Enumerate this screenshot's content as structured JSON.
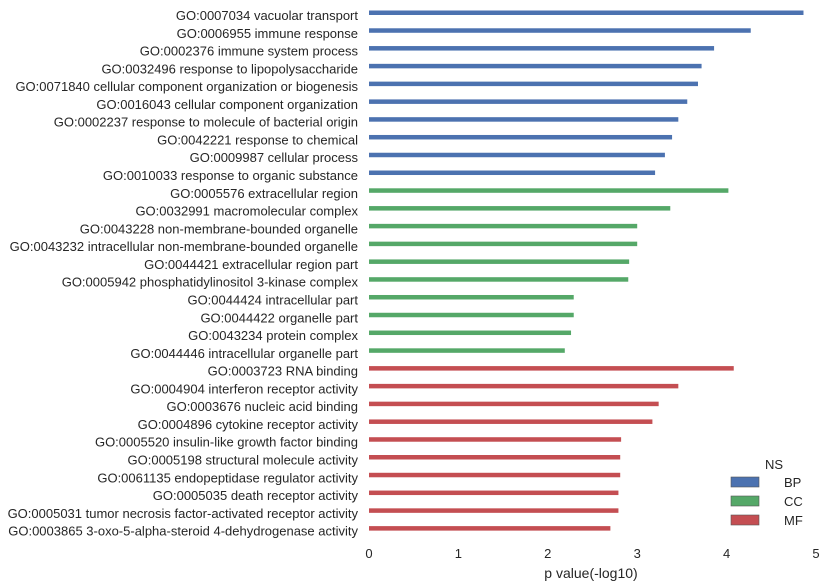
{
  "chart_data": {
    "type": "bar",
    "orientation": "horizontal",
    "xlabel": "p value(-log10)",
    "xlim": [
      0,
      5
    ],
    "xticks": [
      "0",
      "1",
      "2",
      "3",
      "4",
      "5"
    ],
    "grid": false,
    "legend": {
      "title": "NS",
      "placement": "bottom-right",
      "entries": [
        {
          "name": "BP",
          "color": "#4c72b0"
        },
        {
          "name": "CC",
          "color": "#55a868"
        },
        {
          "name": "MF",
          "color": "#c44e52"
        }
      ]
    },
    "categories": [
      {
        "label": "GO:0007034 vacuolar transport",
        "value": 4.86,
        "group": "BP"
      },
      {
        "label": "GO:0006955 immune response",
        "value": 4.27,
        "group": "BP"
      },
      {
        "label": "GO:0002376 immune system process",
        "value": 3.86,
        "group": "BP"
      },
      {
        "label": "GO:0032496 response to lipopolysaccharide",
        "value": 3.72,
        "group": "BP"
      },
      {
        "label": "GO:0071840 cellular component organization or biogenesis",
        "value": 3.68,
        "group": "BP"
      },
      {
        "label": "GO:0016043 cellular component organization",
        "value": 3.56,
        "group": "BP"
      },
      {
        "label": "GO:0002237 response to molecule of bacterial origin",
        "value": 3.46,
        "group": "BP"
      },
      {
        "label": "GO:0042221 response to chemical",
        "value": 3.39,
        "group": "BP"
      },
      {
        "label": "GO:0009987 cellular process",
        "value": 3.31,
        "group": "BP"
      },
      {
        "label": "GO:0010033 response to organic substance",
        "value": 3.2,
        "group": "BP"
      },
      {
        "label": "GO:0005576 extracellular region",
        "value": 4.02,
        "group": "CC"
      },
      {
        "label": "GO:0032991 macromolecular complex",
        "value": 3.37,
        "group": "CC"
      },
      {
        "label": "GO:0043228 non-membrane-bounded organelle",
        "value": 3.0,
        "group": "CC"
      },
      {
        "label": "GO:0043232 intracellular non-membrane-bounded organelle",
        "value": 3.0,
        "group": "CC"
      },
      {
        "label": "GO:0044421 extracellular region part",
        "value": 2.91,
        "group": "CC"
      },
      {
        "label": "GO:0005942 phosphatidylinositol 3-kinase complex",
        "value": 2.9,
        "group": "CC"
      },
      {
        "label": "GO:0044424 intracellular part",
        "value": 2.29,
        "group": "CC"
      },
      {
        "label": "GO:0044422 organelle part",
        "value": 2.29,
        "group": "CC"
      },
      {
        "label": "GO:0043234 protein complex",
        "value": 2.26,
        "group": "CC"
      },
      {
        "label": "GO:0044446 intracellular organelle part",
        "value": 2.19,
        "group": "CC"
      },
      {
        "label": "GO:0003723 RNA binding",
        "value": 4.08,
        "group": "MF"
      },
      {
        "label": "GO:0004904 interferon receptor activity",
        "value": 3.46,
        "group": "MF"
      },
      {
        "label": "GO:0003676 nucleic acid binding",
        "value": 3.24,
        "group": "MF"
      },
      {
        "label": "GO:0004896 cytokine receptor activity",
        "value": 3.17,
        "group": "MF"
      },
      {
        "label": "GO:0005520 insulin-like growth factor binding",
        "value": 2.82,
        "group": "MF"
      },
      {
        "label": "GO:0005198 structural molecule activity",
        "value": 2.81,
        "group": "MF"
      },
      {
        "label": "GO:0061135 endopeptidase regulator activity",
        "value": 2.81,
        "group": "MF"
      },
      {
        "label": "GO:0005035 death receptor activity",
        "value": 2.79,
        "group": "MF"
      },
      {
        "label": "GO:0005031 tumor necrosis factor-activated receptor activity",
        "value": 2.79,
        "group": "MF"
      },
      {
        "label": "GO:0003865 3-oxo-5-alpha-steroid 4-dehydrogenase activity",
        "value": 2.7,
        "group": "MF"
      }
    ]
  }
}
